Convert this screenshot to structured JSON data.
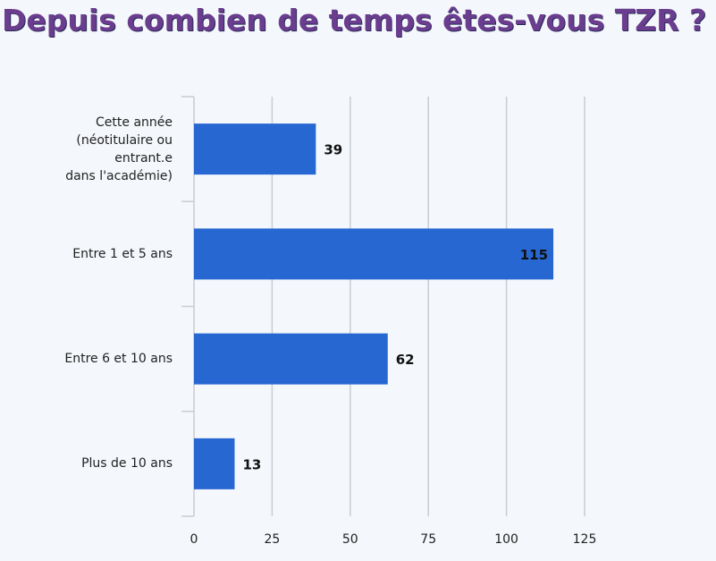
{
  "title": "Depuis combien de temps êtes-vous TZR ?",
  "colors": {
    "bar": "#2767d2",
    "grid": "#c9ccd1",
    "axis": "#c9ccd1",
    "title": "#6a3d8f",
    "background": "#f4f7fb"
  },
  "chart_data": {
    "type": "bar",
    "orientation": "horizontal",
    "categories": [
      "Cette année\n(néotitulaire ou\nentrant.e\ndans l'académie)",
      "Entre 1 et 5 ans",
      "Entre 6 et 10 ans",
      "Plus de 10 ans"
    ],
    "values": [
      39,
      115,
      62,
      13
    ],
    "xlim": [
      0,
      125
    ],
    "xticks": [
      "0",
      "25",
      "50",
      "75",
      "100",
      "125"
    ],
    "grid": true,
    "data_labels": true,
    "legend": "none"
  }
}
